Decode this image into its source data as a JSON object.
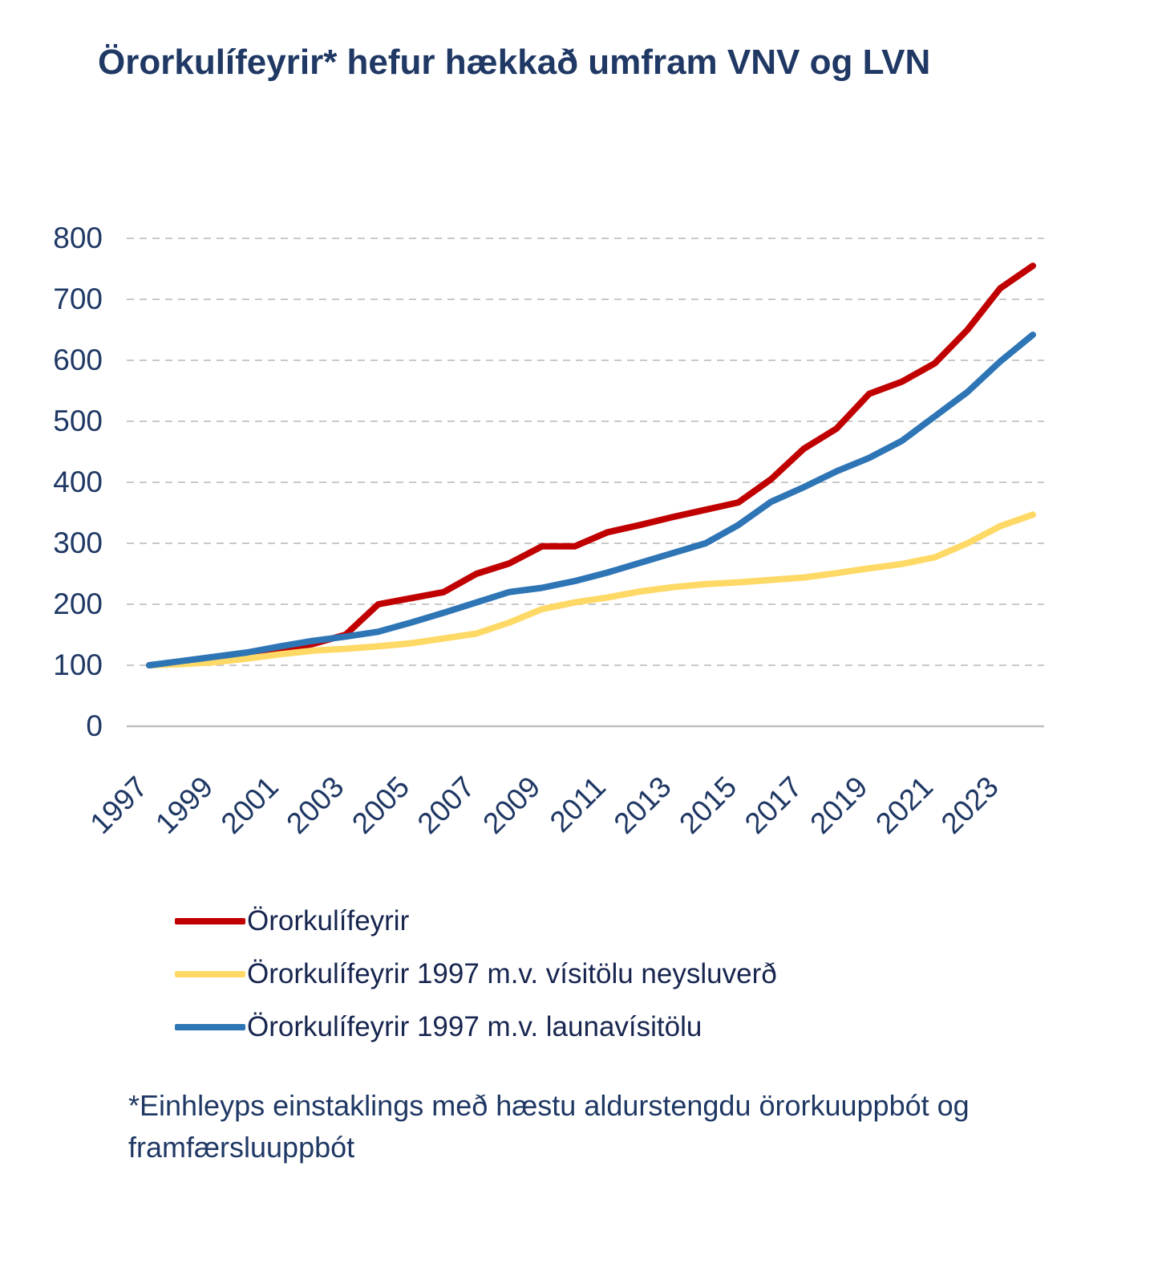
{
  "title": "Örorkulífeyrir* hefur hækkað umfram VNV og LVN",
  "footnote": "*Einhleyps einstaklings með hæstu aldurstengdu örorkuuppbót og framfærsluuppbót",
  "colors": {
    "red": "#c00000",
    "yellow": "#ffd966",
    "blue": "#2e75b6",
    "text": "#1f3864",
    "gridline": "#c9c9c9",
    "axis": "#bfbfbf"
  },
  "chart_data": {
    "type": "line",
    "title": "Örorkulífeyrir* hefur hækkað umfram VNV og LVN",
    "xlabel": "",
    "ylabel": "",
    "ylim": [
      0,
      800
    ],
    "yticks": [
      0,
      100,
      200,
      300,
      400,
      500,
      600,
      700,
      800
    ],
    "xtick_labels": [
      "1997",
      "1999",
      "2001",
      "2003",
      "2005",
      "2007",
      "2009",
      "2011",
      "2013",
      "2015",
      "2017",
      "2019",
      "2021",
      "2023"
    ],
    "grid": "dashed-horizontal",
    "legend_position": "bottom-left",
    "x": [
      1997,
      1998,
      1999,
      2000,
      2001,
      2002,
      2003,
      2004,
      2005,
      2006,
      2007,
      2008,
      2009,
      2010,
      2011,
      2012,
      2013,
      2014,
      2015,
      2016,
      2017,
      2018,
      2019,
      2020,
      2021,
      2022,
      2023,
      2024
    ],
    "series": [
      {
        "name": "Örorkulífeyrir",
        "color": "#c00000",
        "values": [
          100,
          105,
          110,
          116,
          124,
          135,
          150,
          200,
          210,
          220,
          250,
          267,
          295,
          295,
          318,
          330,
          343,
          355,
          367,
          405,
          455,
          488,
          545,
          565,
          595,
          650,
          718,
          755
        ]
      },
      {
        "name": "Örorkulífeyrir 1997 m.v. vísitölu neysluverð",
        "color": "#ffd966",
        "values": [
          100,
          102,
          105,
          111,
          118,
          124,
          127,
          131,
          136,
          144,
          152,
          170,
          192,
          203,
          211,
          221,
          228,
          233,
          236,
          240,
          244,
          251,
          259,
          266,
          277,
          300,
          328,
          347
        ]
      },
      {
        "name": "Örorkulífeyrir 1997 m.v. launavísitölu",
        "color": "#2e75b6",
        "values": [
          100,
          107,
          114,
          121,
          131,
          140,
          147,
          155,
          170,
          186,
          203,
          220,
          227,
          238,
          252,
          268,
          284,
          300,
          330,
          368,
          392,
          418,
          440,
          468,
          508,
          548,
          598,
          642
        ]
      }
    ]
  }
}
